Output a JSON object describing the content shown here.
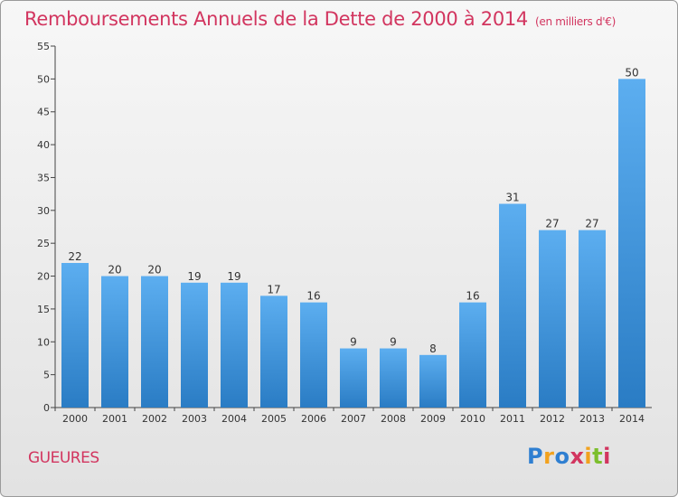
{
  "chart_data": {
    "type": "bar",
    "title": "Remboursements Annuels de la Dette de 2000 à 2014",
    "unit_note": "(en milliers d'€)",
    "categories": [
      "2000",
      "2001",
      "2002",
      "2003",
      "2004",
      "2005",
      "2006",
      "2007",
      "2008",
      "2009",
      "2010",
      "2011",
      "2012",
      "2013",
      "2014"
    ],
    "values": [
      22,
      20,
      20,
      19,
      19,
      17,
      16,
      9,
      9,
      8,
      16,
      31,
      27,
      27,
      50
    ],
    "ylim": [
      0,
      55
    ],
    "yticks": [
      0,
      5,
      10,
      15,
      20,
      25,
      30,
      35,
      40,
      45,
      50,
      55
    ],
    "grid": false,
    "bar_color": "#3d8fd6"
  },
  "footer": {
    "commune": "GUEURES",
    "logo": {
      "p": "P",
      "r": "r",
      "o": "o",
      "x": "x",
      "i1": "i",
      "t": "t",
      "i2": "i"
    }
  }
}
